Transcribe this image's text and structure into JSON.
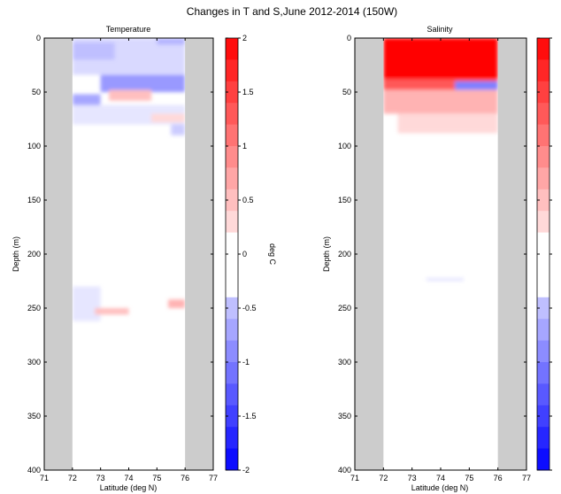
{
  "figure": {
    "suptitle": "Changes in T and S,June 2012-2014 (150W)"
  },
  "chart_data": [
    {
      "type": "heatmap",
      "title": "Temperature",
      "xlabel": "Latitude (deg N)",
      "ylabel": "Depth (m)",
      "xlim": [
        71,
        77
      ],
      "ylim": [
        400,
        0
      ],
      "xticks": [
        "71",
        "72",
        "73",
        "74",
        "75",
        "76",
        "77"
      ],
      "yticks": [
        "0",
        "50",
        "100",
        "150",
        "200",
        "250",
        "300",
        "350",
        "400"
      ],
      "land_mask": [
        [
          71,
          72
        ],
        [
          76,
          77
        ]
      ],
      "colorbar": {
        "label": "deg C",
        "range": [
          -2,
          2
        ],
        "ticks": [
          "2",
          "1.5",
          "1",
          "0.5",
          "0",
          "-0.5",
          "-1",
          "-1.5",
          "-2"
        ],
        "levels": 20
      },
      "anomalies": [
        {
          "lat": [
            72.0,
            76.0
          ],
          "depth": [
            0,
            34
          ],
          "value": -0.3
        },
        {
          "lat": [
            72.0,
            73.5
          ],
          "depth": [
            4,
            20
          ],
          "value": -0.5
        },
        {
          "lat": [
            75.0,
            76.0
          ],
          "depth": [
            0,
            6
          ],
          "value": -0.6
        },
        {
          "lat": [
            73.0,
            76.0
          ],
          "depth": [
            34,
            50
          ],
          "value": -0.8
        },
        {
          "lat": [
            72.0,
            73.0
          ],
          "depth": [
            52,
            64
          ],
          "value": -0.7
        },
        {
          "lat": [
            73.3,
            74.8
          ],
          "depth": [
            48,
            58
          ],
          "value": 0.5
        },
        {
          "lat": [
            72.0,
            76.0
          ],
          "depth": [
            62,
            80
          ],
          "value": -0.2
        },
        {
          "lat": [
            74.8,
            76.0
          ],
          "depth": [
            70,
            78
          ],
          "value": 0.3
        },
        {
          "lat": [
            75.5,
            76.0
          ],
          "depth": [
            80,
            90
          ],
          "value": -0.4
        },
        {
          "lat": [
            72.0,
            73.0
          ],
          "depth": [
            230,
            262
          ],
          "value": -0.2
        },
        {
          "lat": [
            72.8,
            74.0
          ],
          "depth": [
            250,
            256
          ],
          "value": 0.5
        },
        {
          "lat": [
            75.4,
            76.0
          ],
          "depth": [
            242,
            250
          ],
          "value": 0.6
        }
      ]
    },
    {
      "type": "heatmap",
      "title": "Salinity",
      "xlabel": "Latitude (deg N)",
      "ylabel": "Depth (m)",
      "xlim": [
        71,
        77
      ],
      "ylim": [
        400,
        0
      ],
      "xticks": [
        "71",
        "72",
        "73",
        "74",
        "75",
        "76",
        "77"
      ],
      "yticks": [
        "0",
        "50",
        "100",
        "150",
        "200",
        "250",
        "300",
        "350",
        "400"
      ],
      "land_mask": [
        [
          71,
          72
        ],
        [
          76,
          77
        ]
      ],
      "colorbar": {
        "label": "",
        "range": [
          -2,
          2
        ],
        "ticks": [
          "",
          "",
          "",
          "",
          "",
          "",
          "",
          "",
          ""
        ],
        "levels": 20
      },
      "anomalies": [
        {
          "lat": [
            72.0,
            76.0
          ],
          "depth": [
            0,
            42
          ],
          "value": 2.0
        },
        {
          "lat": [
            72.0,
            76.0
          ],
          "depth": [
            38,
            48
          ],
          "value": 1.3
        },
        {
          "lat": [
            74.5,
            76.0
          ],
          "depth": [
            40,
            48
          ],
          "value": -1.0
        },
        {
          "lat": [
            72.0,
            73.0
          ],
          "depth": [
            52,
            62
          ],
          "value": -0.9
        },
        {
          "lat": [
            72.0,
            76.0
          ],
          "depth": [
            48,
            70
          ],
          "value": 0.6
        },
        {
          "lat": [
            72.5,
            76.0
          ],
          "depth": [
            70,
            88
          ],
          "value": 0.3
        },
        {
          "lat": [
            73.5,
            74.8
          ],
          "depth": [
            222,
            225
          ],
          "value": -0.2
        }
      ]
    }
  ]
}
